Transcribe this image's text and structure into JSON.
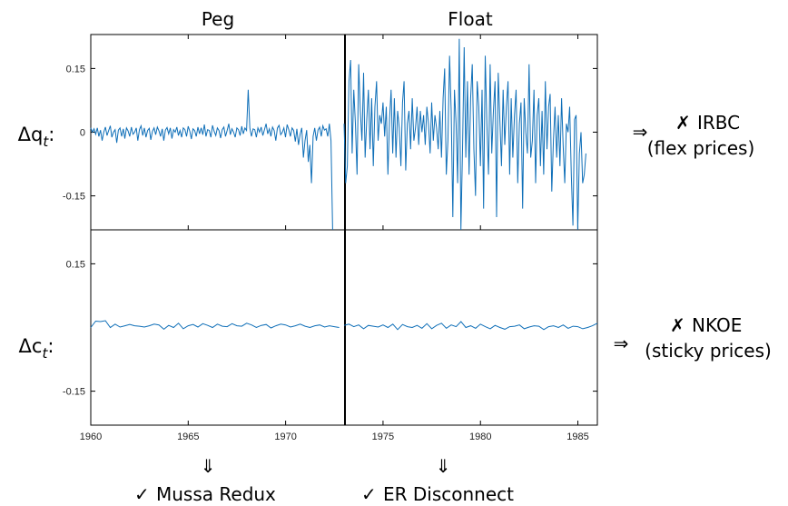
{
  "chart_data": [
    {
      "type": "line",
      "panel": "top",
      "column_titles": [
        "Peg",
        "Float"
      ],
      "y_label_var": "Δq",
      "y_label_sub": "t",
      "y_label_suffix": ":",
      "xlim": [
        1960,
        1986
      ],
      "ylim": [
        -0.23,
        0.23
      ],
      "regime_break": 1973,
      "yticks": [
        {
          "v": 0.15,
          "label": "0.15"
        },
        {
          "v": 0,
          "label": "0"
        },
        {
          "v": -0.15,
          "label": "-0.15"
        }
      ],
      "series": [
        {
          "x_start": 1960,
          "x_step": 0.0833,
          "values": [
            0.01,
            0.0,
            0.008,
            -0.005,
            0.01,
            -0.01,
            0.005,
            -0.02,
            0.0,
            0.012,
            -0.008,
            0.004,
            0.015,
            -0.012,
            0.0,
            0.006,
            -0.025,
            0.005,
            0.01,
            -0.01,
            0.008,
            -0.015,
            0.01,
            0.003,
            -0.01,
            0.012,
            -0.005,
            0.0,
            0.01,
            -0.02,
            0.006,
            0.015,
            -0.008,
            0.01,
            -0.012,
            0.004,
            0.009,
            -0.018,
            0.002,
            0.01,
            -0.006,
            0.012,
            0.003,
            -0.01,
            0.008,
            -0.02,
            0.005,
            0.011,
            -0.004,
            0.01,
            -0.015,
            0.006,
            0.0,
            0.012,
            -0.008,
            0.004,
            -0.012,
            0.01,
            0.006,
            -0.01,
            0.014,
            0.002,
            -0.016,
            0.008,
            0.004,
            -0.01,
            0.012,
            -0.004,
            0.01,
            -0.006,
            0.018,
            -0.01,
            0.006,
            0.004,
            -0.012,
            0.016,
            0.002,
            -0.008,
            0.01,
            0.004,
            -0.014,
            0.006,
            0.012,
            -0.01,
            0.004,
            0.02,
            -0.006,
            0.008,
            0.0,
            -0.012,
            0.01,
            0.006,
            -0.008,
            0.014,
            -0.004,
            0.01,
            0.004,
            0.1,
            0.01,
            -0.01,
            0.008,
            0.006,
            -0.012,
            0.01,
            0.0,
            0.012,
            -0.008,
            0.006,
            0.02,
            -0.004,
            0.008,
            -0.01,
            0.012,
            0.004,
            -0.02,
            0.01,
            0.016,
            -0.006,
            0.0,
            0.01,
            -0.012,
            0.018,
            0.006,
            -0.01,
            0.01,
            0.004,
            -0.022,
            0.008,
            -0.03,
            -0.005,
            0.01,
            -0.06,
            -0.02,
            0.005,
            -0.07,
            -0.03,
            -0.12,
            -0.01,
            0.01,
            -0.02,
            0.005,
            0.012,
            -0.01,
            0.015,
            0.005,
            0.008,
            -0.01,
            0.02,
            -0.02,
            -0.23
          ]
        },
        {
          "x_start": 1973,
          "x_step": 0.0833,
          "values": [
            0.02,
            -0.12,
            -0.08,
            0.12,
            0.17,
            -0.05,
            0.1,
            0.02,
            -0.1,
            0.16,
            0.05,
            -0.02,
            0.14,
            -0.06,
            0.03,
            0.1,
            -0.04,
            0.08,
            -0.08,
            0.06,
            0.12,
            -0.02,
            0.04,
            0.02,
            0.07,
            -0.01,
            0.06,
            -0.1,
            0.03,
            0.1,
            -0.05,
            0.08,
            -0.06,
            0.05,
            0.01,
            -0.08,
            0.07,
            0.12,
            -0.09,
            0.02,
            0.05,
            -0.04,
            0.08,
            -0.02,
            0.01,
            0.06,
            -0.03,
            0.05,
            0.0,
            0.04,
            -0.03,
            0.06,
            0.02,
            -0.05,
            0.07,
            -0.02,
            0.04,
            0.01,
            -0.04,
            0.05,
            -0.06,
            0.08,
            0.15,
            -0.1,
            -0.02,
            0.18,
            0.05,
            -0.2,
            0.1,
            0.02,
            -0.12,
            0.22,
            -0.23,
            -0.04,
            0.2,
            -0.06,
            0.12,
            -0.1,
            0.08,
            0.16,
            -0.04,
            -0.15,
            0.12,
            0.06,
            -0.08,
            0.1,
            -0.18,
            0.18,
            0.02,
            -0.1,
            0.16,
            -0.05,
            0.05,
            0.12,
            -0.2,
            0.14,
            0.03,
            -0.08,
            0.1,
            -0.03,
            0.06,
            0.12,
            -0.1,
            0.08,
            -0.06,
            0.04,
            0.1,
            -0.12,
            0.02,
            0.07,
            -0.18,
            0.08,
            0.0,
            -0.05,
            0.16,
            -0.06,
            -0.02,
            0.1,
            -0.12,
            0.04,
            0.08,
            -0.08,
            0.05,
            -0.1,
            0.12,
            -0.04,
            0.06,
            0.09,
            -0.14,
            -0.02,
            0.06,
            -0.06,
            0.04,
            -0.08,
            0.08,
            -0.03,
            -0.12,
            0.02,
            0.0,
            0.06,
            -0.1,
            -0.22,
            0.03,
            0.04,
            -0.23,
            -0.05,
            0.0,
            -0.12,
            -0.1,
            -0.05
          ]
        }
      ]
    },
    {
      "type": "line",
      "panel": "bottom",
      "y_label_var": "Δc",
      "y_label_sub": "t",
      "y_label_suffix": ":",
      "xlim": [
        1960,
        1986
      ],
      "ylim": [
        -0.23,
        0.23
      ],
      "regime_break": 1973,
      "yticks": [
        {
          "v": 0.15,
          "label": "0.15"
        },
        {
          "v": -0.15,
          "label": "-0.15"
        }
      ],
      "xticks": [
        {
          "v": 1960,
          "label": "1960"
        },
        {
          "v": 1965,
          "label": "1965"
        },
        {
          "v": 1970,
          "label": "1970"
        },
        {
          "v": 1975,
          "label": "1975"
        },
        {
          "v": 1980,
          "label": "1980"
        },
        {
          "v": 1985,
          "label": "1985"
        }
      ],
      "series": [
        {
          "x_start": 1960,
          "x_step": 0.25,
          "values": [
            0.0,
            0.015,
            0.014,
            0.016,
            0.0,
            0.008,
            0.001,
            0.004,
            0.007,
            0.004,
            0.003,
            0.001,
            0.004,
            0.008,
            0.006,
            -0.004,
            0.005,
            0.0,
            0.01,
            -0.003,
            0.004,
            0.007,
            0.001,
            0.009,
            0.005,
            0.0,
            0.008,
            0.003,
            0.002,
            0.009,
            0.004,
            0.003,
            0.01,
            0.006,
            0.0,
            0.005,
            0.007,
            -0.001,
            0.004,
            0.008,
            0.006,
            0.001,
            0.004,
            0.008,
            0.003,
            0.0,
            0.004,
            0.006,
            0.001,
            0.004,
            0.002,
            0.0
          ]
        },
        {
          "x_start": 1973,
          "x_step": 0.25,
          "values": [
            0.005,
            0.008,
            0.002,
            0.006,
            -0.003,
            0.005,
            0.003,
            0.001,
            0.006,
            0.0,
            0.008,
            -0.005,
            0.007,
            0.002,
            0.0,
            0.005,
            -0.002,
            0.009,
            -0.003,
            0.005,
            0.01,
            -0.002,
            0.006,
            0.002,
            0.014,
            0.0,
            0.004,
            -0.002,
            0.008,
            0.002,
            -0.003,
            0.005,
            0.0,
            -0.004,
            0.002,
            0.003,
            0.006,
            -0.003,
            0.001,
            0.004,
            0.003,
            -0.005,
            0.002,
            0.004,
            0.0,
            0.006,
            -0.002,
            0.003,
            0.002,
            -0.003,
            0.0,
            0.004,
            0.01
          ]
        }
      ]
    }
  ],
  "annotations": {
    "top_right": {
      "arrow": "⇒",
      "mark": "✗",
      "model": "IRBC",
      "note": "(flex prices)"
    },
    "bottom_right": {
      "arrow": "⇒",
      "mark": "✗",
      "model": "NKOE",
      "note": "(sticky prices)"
    },
    "bottom_left": {
      "arrow": "⇓",
      "mark": "✓",
      "text": "Mussa Redux"
    },
    "bottom_mid": {
      "arrow": "⇓",
      "mark": "✓",
      "text": "ER Disconnect"
    }
  },
  "colors": {
    "series": "#0f6fb8",
    "check": "#1a3fbf",
    "cross": "#e0201c"
  }
}
